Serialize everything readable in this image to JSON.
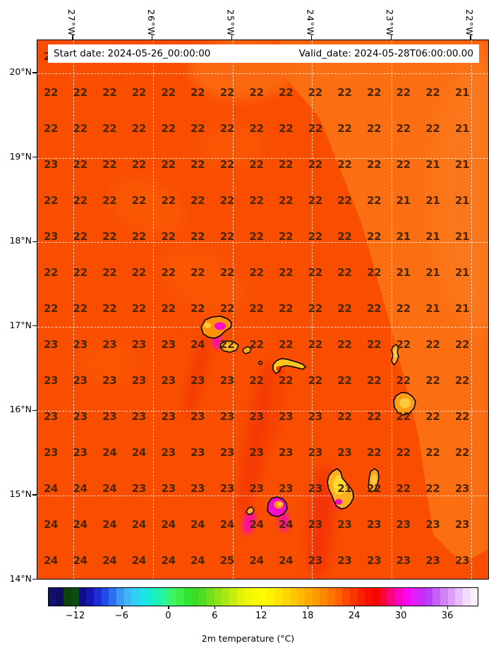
{
  "chart_data": {
    "type": "heatmap",
    "title": {
      "start": "Start date: 2024-05-26_00:00:00",
      "valid": "Valid_date: 2024-05-28T06:00:00.00"
    },
    "x_axis": {
      "ticks": [
        "27°W",
        "26°W",
        "25°W",
        "24°W",
        "23°W",
        "22°W"
      ]
    },
    "y_axis": {
      "ticks": [
        "20°N",
        "19°N",
        "18°N",
        "17°N",
        "16°N",
        "15°N",
        "14°N"
      ]
    },
    "grid_values": [
      [
        "22",
        "22",
        "22",
        "22",
        "22",
        "22",
        "22",
        "22",
        "22",
        "22",
        "22",
        "22",
        "22",
        "22",
        "22"
      ],
      [
        "22",
        "22",
        "22",
        "22",
        "22",
        "22",
        "22",
        "22",
        "22",
        "22",
        "22",
        "22",
        "22",
        "22",
        "21"
      ],
      [
        "22",
        "22",
        "22",
        "22",
        "22",
        "22",
        "22",
        "22",
        "22",
        "22",
        "22",
        "22",
        "22",
        "22",
        "21"
      ],
      [
        "23",
        "22",
        "22",
        "22",
        "22",
        "22",
        "22",
        "22",
        "22",
        "22",
        "22",
        "22",
        "22",
        "21",
        "21"
      ],
      [
        "22",
        "22",
        "22",
        "22",
        "22",
        "22",
        "22",
        "22",
        "22",
        "22",
        "22",
        "22",
        "21",
        "21",
        "21"
      ],
      [
        "23",
        "22",
        "22",
        "22",
        "22",
        "22",
        "22",
        "22",
        "22",
        "22",
        "22",
        "22",
        "21",
        "21",
        "21"
      ],
      [
        "22",
        "22",
        "22",
        "22",
        "22",
        "22",
        "22",
        "22",
        "22",
        "22",
        "22",
        "22",
        "21",
        "21",
        "21"
      ],
      [
        "22",
        "22",
        "22",
        "22",
        "22",
        "22",
        "22",
        "22",
        "22",
        "22",
        "22",
        "22",
        "22",
        "21",
        "21"
      ],
      [
        "23",
        "23",
        "23",
        "23",
        "23",
        "24",
        "22",
        "22",
        "22",
        "22",
        "22",
        "22",
        "22",
        "22",
        "22"
      ],
      [
        "23",
        "23",
        "23",
        "23",
        "23",
        "23",
        "23",
        "22",
        "22",
        "22",
        "22",
        "22",
        "22",
        "22",
        "22"
      ],
      [
        "23",
        "23",
        "23",
        "23",
        "23",
        "23",
        "23",
        "23",
        "23",
        "23",
        "22",
        "22",
        "22",
        "22",
        "22"
      ],
      [
        "23",
        "23",
        "24",
        "24",
        "23",
        "23",
        "23",
        "23",
        "23",
        "23",
        "23",
        "22",
        "22",
        "22",
        "22"
      ],
      [
        "24",
        "24",
        "24",
        "23",
        "23",
        "23",
        "23",
        "23",
        "23",
        "23",
        "21",
        "22",
        "22",
        "22",
        "23"
      ],
      [
        "24",
        "24",
        "24",
        "24",
        "24",
        "24",
        "24",
        "24",
        "24",
        "23",
        "23",
        "23",
        "23",
        "23",
        "23"
      ],
      [
        "24",
        "24",
        "24",
        "24",
        "24",
        "24",
        "25",
        "24",
        "24",
        "23",
        "23",
        "23",
        "23",
        "23",
        "23"
      ]
    ],
    "colorbar": {
      "label": "2m temperature (°C)",
      "vmin": -15.5,
      "vmax": 40,
      "ticks": [
        {
          "value": -12,
          "label": "−12"
        },
        {
          "value": -6,
          "label": "−6"
        },
        {
          "value": 0,
          "label": "0"
        },
        {
          "value": 6,
          "label": "6"
        },
        {
          "value": 12,
          "label": "12"
        },
        {
          "value": 18,
          "label": "18"
        },
        {
          "value": 24,
          "label": "24"
        },
        {
          "value": 30,
          "label": "30"
        },
        {
          "value": 36,
          "label": "36"
        }
      ],
      "colors": [
        "#12126e",
        "#0d0d62",
        "#0e4010",
        "#0b4d0b",
        "#101084",
        "#1717b6",
        "#1e2cd4",
        "#2349e8",
        "#2b70f1",
        "#3b99f3",
        "#40b6f4",
        "#30cff3",
        "#20e0e9",
        "#17ebd3",
        "#1df1b3",
        "#2df58f",
        "#3bf467",
        "#3bef47",
        "#30e530",
        "#39dd27",
        "#53dc21",
        "#71e01d",
        "#8fe419",
        "#ace814",
        "#c7ed0f",
        "#dff309",
        "#eff705",
        "#f9fa02",
        "#fefb01",
        "#fef200",
        "#fee400",
        "#fed600",
        "#fec700",
        "#feb900",
        "#fea900",
        "#fe9900",
        "#fe8800",
        "#fe7600",
        "#fd6100",
        "#fc4b00",
        "#fb3500",
        "#fa2100",
        "#f90f00",
        "#f80404",
        "#f9043d",
        "#fb0581",
        "#fc05bd",
        "#fd05ef",
        "#e61dfb",
        "#c72bf9",
        "#ba3ff8",
        "#c560f7",
        "#d081f6",
        "#dc9ff7",
        "#e7bef9",
        "#f3dcfc",
        "#fbf1fe"
      ]
    },
    "map_colors": {
      "sea_warm": "#f94e00",
      "sea_cool": "#fb6e12",
      "island_fill": "#ffc02a",
      "hotspot_magenta": "#fa08c0"
    }
  }
}
